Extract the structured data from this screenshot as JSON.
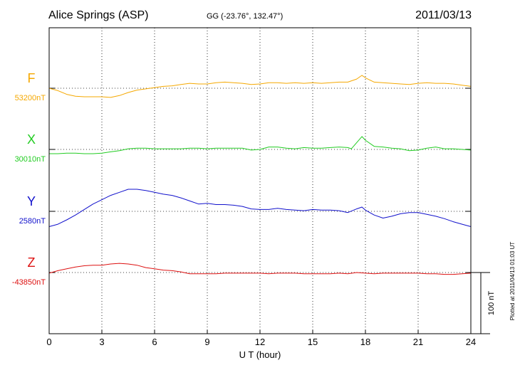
{
  "title": "Alice Springs (ASP)",
  "coordinates": "GG (-23.76°, 132.47°)",
  "date": "2011/03/13",
  "plot_note": "Plotted at 2011/04/13 01:03 UT",
  "scale_label": "100 nT",
  "chart_data": {
    "type": "line",
    "xlabel": "U T (hour)",
    "xlim": [
      0,
      24
    ],
    "xticks": [
      0,
      3,
      6,
      9,
      12,
      15,
      18,
      21,
      24
    ],
    "grid": true,
    "scale_bar_nT": 100,
    "series": [
      {
        "name": "F",
        "baseline_label": "53200nT",
        "baseline": 53200,
        "color": "#f5a800",
        "x": [
          0,
          0.5,
          1,
          1.5,
          2,
          2.5,
          3,
          3.5,
          4,
          4.5,
          5,
          5.5,
          6,
          6.5,
          7,
          7.5,
          8,
          8.5,
          9,
          9.5,
          10,
          10.5,
          11,
          11.5,
          12,
          12.5,
          13,
          13.5,
          14,
          14.5,
          15,
          15.5,
          16,
          16.5,
          17,
          17.5,
          17.8,
          18,
          18.5,
          19,
          19.5,
          20,
          20.5,
          21,
          21.5,
          22,
          22.5,
          23,
          23.5,
          24
        ],
        "y": [
          53200,
          53196,
          53190,
          53187,
          53186,
          53186,
          53186,
          53185,
          53188,
          53193,
          53197,
          53199,
          53201,
          53203,
          53204,
          53206,
          53208,
          53207,
          53207,
          53209,
          53210,
          53209,
          53208,
          53206,
          53207,
          53209,
          53209,
          53208,
          53209,
          53208,
          53209,
          53208,
          53209,
          53210,
          53210,
          53215,
          53221,
          53217,
          53210,
          53209,
          53208,
          53207,
          53206,
          53208,
          53209,
          53208,
          53208,
          53207,
          53205,
          53203
        ]
      },
      {
        "name": "X",
        "baseline_label": "30010nT",
        "baseline": 30010,
        "color": "#22cc22",
        "x": [
          0,
          0.5,
          1,
          1.5,
          2,
          2.5,
          3,
          3.5,
          4,
          4.5,
          5,
          5.5,
          6,
          6.5,
          7,
          7.5,
          8,
          8.5,
          9,
          9.5,
          10,
          10.5,
          11,
          11.5,
          12,
          12.5,
          13,
          13.5,
          14,
          14.5,
          15,
          15.5,
          16,
          16.5,
          17,
          17.2,
          17.8,
          18,
          18.5,
          19,
          19.5,
          20,
          20.5,
          21,
          21.5,
          22,
          22.5,
          23,
          23.5,
          24
        ],
        "y": [
          30003,
          30003,
          30004,
          30004,
          30003,
          30003,
          30004,
          30006,
          30008,
          30011,
          30012,
          30012,
          30011,
          30011,
          30011,
          30011,
          30012,
          30012,
          30011,
          30012,
          30012,
          30012,
          30012,
          30009,
          30010,
          30014,
          30014,
          30012,
          30011,
          30013,
          30012,
          30012,
          30013,
          30014,
          30013,
          30011,
          30031,
          30025,
          30015,
          30014,
          30012,
          30011,
          30008,
          30009,
          30012,
          30014,
          30011,
          30011,
          30010,
          30009
        ]
      },
      {
        "name": "Y",
        "baseline_label": "2580nT",
        "baseline": 2580,
        "color": "#1111cc",
        "x": [
          0,
          0.5,
          1,
          1.5,
          2,
          2.5,
          3,
          3.5,
          4,
          4.5,
          5,
          5.5,
          6,
          6.5,
          7,
          7.5,
          8,
          8.5,
          9,
          9.5,
          10,
          10.5,
          11,
          11.5,
          12,
          12.5,
          13,
          13.5,
          14,
          14.5,
          15,
          15.5,
          16,
          16.5,
          17,
          17.5,
          17.8,
          18,
          18.5,
          19,
          19.5,
          20,
          20.5,
          21,
          21.5,
          22,
          22.5,
          23,
          23.5,
          24
        ],
        "y": [
          2555,
          2559,
          2566,
          2574,
          2583,
          2592,
          2599,
          2606,
          2611,
          2616,
          2616,
          2614,
          2611,
          2608,
          2606,
          2602,
          2597,
          2592,
          2593,
          2591,
          2591,
          2590,
          2588,
          2584,
          2583,
          2583,
          2585,
          2583,
          2582,
          2581,
          2583,
          2582,
          2582,
          2581,
          2578,
          2584,
          2587,
          2582,
          2574,
          2569,
          2572,
          2576,
          2578,
          2578,
          2575,
          2572,
          2568,
          2563,
          2559,
          2555
        ]
      },
      {
        "name": "Z",
        "baseline_label": "-43850nT",
        "baseline": -43850,
        "color": "#dd1111",
        "x": [
          0,
          0.5,
          1,
          1.5,
          2,
          2.5,
          3,
          3.5,
          4,
          4.5,
          5,
          5.5,
          6,
          6.5,
          7,
          7.5,
          8,
          8.5,
          9,
          9.5,
          10,
          10.5,
          11,
          11.5,
          12,
          12.5,
          13,
          13.5,
          14,
          14.5,
          15,
          15.5,
          16,
          16.5,
          17,
          17.5,
          18,
          18.5,
          19,
          19.5,
          20,
          20.5,
          21,
          21.5,
          22,
          22.5,
          23,
          23.5,
          24
        ],
        "y": [
          -43851,
          -43847,
          -43844,
          -43841,
          -43839,
          -43838,
          -43838,
          -43836,
          -43835,
          -43836,
          -43838,
          -43842,
          -43844,
          -43846,
          -43847,
          -43849,
          -43852,
          -43852,
          -43852,
          -43852,
          -43851,
          -43851,
          -43851,
          -43851,
          -43851,
          -43852,
          -43851,
          -43851,
          -43851,
          -43852,
          -43852,
          -43852,
          -43852,
          -43851,
          -43852,
          -43850,
          -43851,
          -43852,
          -43851,
          -43851,
          -43851,
          -43851,
          -43851,
          -43852,
          -43852,
          -43853,
          -43853,
          -43852,
          -43851
        ]
      }
    ]
  }
}
